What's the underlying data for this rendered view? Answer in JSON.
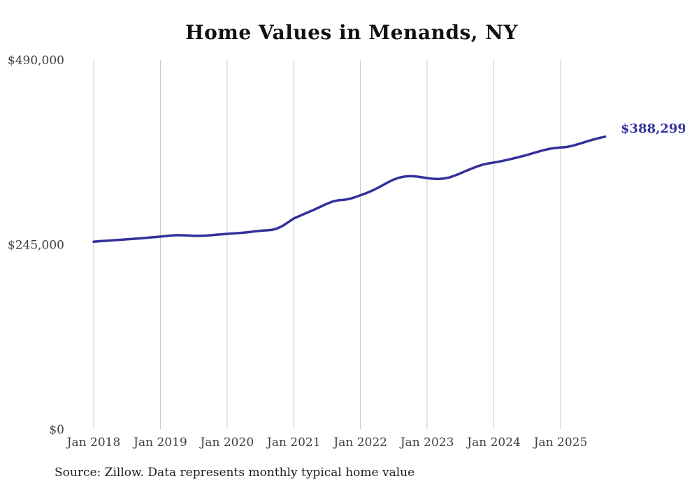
{
  "title": "Home Values in Menands, NY",
  "source_note": "Source: Zillow. Data represents monthly typical home value",
  "end_label": "$388,299",
  "colors": {
    "line": "#34309b",
    "end_label": "#34309b",
    "gridline": "#cbcbcb",
    "tick_text": "#3f3f3f",
    "title_text": "#111111",
    "source_text": "#1d1d1d"
  },
  "chart_data": {
    "type": "line",
    "title": "Home Values in Menands, NY",
    "xlabel": "",
    "ylabel": "",
    "ylim": [
      0,
      490000
    ],
    "grid": "vertical-only",
    "legend": "none",
    "y_ticks": [
      {
        "value": 0,
        "label": "$0"
      },
      {
        "value": 245000,
        "label": "$245,000"
      },
      {
        "value": 490000,
        "label": "$490,000"
      }
    ],
    "x_ticks": [
      {
        "month_index": 0,
        "label": "Jan 2018"
      },
      {
        "month_index": 12,
        "label": "Jan 2019"
      },
      {
        "month_index": 24,
        "label": "Jan 2020"
      },
      {
        "month_index": 36,
        "label": "Jan 2021"
      },
      {
        "month_index": 48,
        "label": "Jan 2022"
      },
      {
        "month_index": 60,
        "label": "Jan 2023"
      },
      {
        "month_index": 72,
        "label": "Jan 2024"
      },
      {
        "month_index": 84,
        "label": "Jan 2025"
      }
    ],
    "series": [
      {
        "name": "Typical home value",
        "start_month": "2018-01",
        "end_month": "2025-09",
        "last_value": 388299,
        "values": [
          249000,
          249600,
          250100,
          250600,
          251100,
          251600,
          252100,
          252600,
          253200,
          253800,
          254500,
          255100,
          255700,
          256500,
          257200,
          257600,
          257500,
          257200,
          256900,
          256800,
          257000,
          257500,
          258200,
          258800,
          259400,
          259900,
          260400,
          261000,
          261800,
          262700,
          263500,
          264000,
          264500,
          266500,
          270000,
          274800,
          279800,
          283000,
          286200,
          289400,
          292600,
          296000,
          299500,
          302300,
          303900,
          304500,
          305800,
          308000,
          310600,
          313300,
          316400,
          319900,
          323900,
          328000,
          331500,
          334000,
          335500,
          336000,
          335600,
          334500,
          333400,
          332500,
          332200,
          332800,
          334200,
          336800,
          339800,
          343000,
          346000,
          348800,
          351200,
          352800,
          354000,
          355300,
          356900,
          358600,
          360400,
          362200,
          364100,
          366300,
          368500,
          370500,
          372200,
          373300,
          373900,
          374600,
          376100,
          378100,
          380300,
          382600,
          384700,
          386600,
          388299
        ]
      }
    ]
  }
}
